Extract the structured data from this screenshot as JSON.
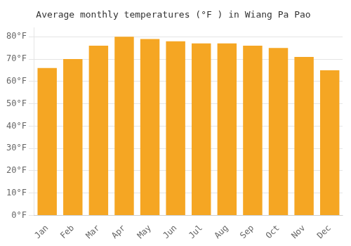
{
  "chart_data": {
    "type": "bar",
    "title": "Average monthly temperatures (°F ) in Wiang Pa Pao",
    "categories": [
      "Jan",
      "Feb",
      "Mar",
      "Apr",
      "May",
      "Jun",
      "Jul",
      "Aug",
      "Sep",
      "Oct",
      "Nov",
      "Dec"
    ],
    "values": [
      66,
      70,
      76,
      80,
      79,
      78,
      77,
      77,
      76,
      75,
      71,
      65
    ],
    "color": "#F5A623",
    "ylim": [
      0,
      84
    ],
    "yticks": [
      {
        "value": 0,
        "label": "0°F"
      },
      {
        "value": 10,
        "label": "10°F"
      },
      {
        "value": 20,
        "label": "20°F"
      },
      {
        "value": 30,
        "label": "30°F"
      },
      {
        "value": 40,
        "label": "40°F"
      },
      {
        "value": 50,
        "label": "50°F"
      },
      {
        "value": 60,
        "label": "60°F"
      },
      {
        "value": 70,
        "label": "70°F"
      },
      {
        "value": 80,
        "label": "80°F"
      }
    ],
    "grid": true
  }
}
